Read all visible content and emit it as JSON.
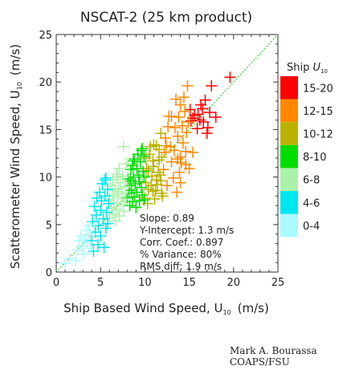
{
  "chart_data": {
    "type": "scatter",
    "title": "NSCAT-2 (25 km product)",
    "xlabel": "Ship Based Wind Speed, U",
    "xlabel_sub": "10",
    "xlabel_unit": "(m/s)",
    "ylabel": "Scatterometer Wind Speed, U",
    "ylabel_sub": "10",
    "ylabel_unit": "(m/s)",
    "xlim": [
      0,
      25
    ],
    "ylim": [
      0,
      25
    ],
    "xticks": [
      "0",
      "5",
      "10",
      "15",
      "20",
      "25"
    ],
    "yticks": [
      "0",
      "5",
      "10",
      "15",
      "20",
      "25"
    ],
    "grid": false,
    "reference_line": "y = x (dotted green)",
    "marker": "plus",
    "legend": {
      "title": "Ship",
      "title_var": "U",
      "title_sub": "10",
      "placement": "right",
      "bins": [
        {
          "label": "15-20",
          "color": "#ff0000"
        },
        {
          "label": "12-15",
          "color": "#ff8800"
        },
        {
          "label": "10-12",
          "color": "#bbb200"
        },
        {
          "label": "8-10",
          "color": "#00dd00"
        },
        {
          "label": "6-8",
          "color": "#aaf2aa"
        },
        {
          "label": "4-6",
          "color": "#00e6f0"
        },
        {
          "label": "0-4",
          "color": "#aafbff"
        }
      ]
    },
    "stats": [
      {
        "label": "Slope:",
        "value": "0.89"
      },
      {
        "label": "Y-Intercept:",
        "value": "1.3 m/s"
      },
      {
        "label": "Corr. Coef.:",
        "value": "0.897"
      },
      {
        "label": "% Variance:",
        "value": "80%"
      },
      {
        "label": "RMS diff:",
        "value": "1.9 m/s"
      }
    ],
    "series": [
      {
        "bin": "15-20",
        "points": [
          [
            19.6,
            20.5
          ],
          [
            17.5,
            19.6
          ],
          [
            16.8,
            18.1
          ],
          [
            16.5,
            17.2
          ],
          [
            17.3,
            16.8
          ],
          [
            16.0,
            16.6
          ],
          [
            15.6,
            16.5
          ],
          [
            15.4,
            16.2
          ],
          [
            16.2,
            16.0
          ],
          [
            15.1,
            17.1
          ],
          [
            16.6,
            15.8
          ],
          [
            17.1,
            15.2
          ],
          [
            15.9,
            15.1
          ],
          [
            15.2,
            15.9
          ],
          [
            17.0,
            14.6
          ],
          [
            18.0,
            16.3
          ],
          [
            16.3,
            17.6
          ]
        ]
      },
      {
        "bin": "12-15",
        "points": [
          [
            14.8,
            19.6
          ],
          [
            14.4,
            18.4
          ],
          [
            14.0,
            17.6
          ],
          [
            13.5,
            18.2
          ],
          [
            13.0,
            16.4
          ],
          [
            14.5,
            16.9
          ],
          [
            14.2,
            15.4
          ],
          [
            12.6,
            15.3
          ],
          [
            13.7,
            14.3
          ],
          [
            12.3,
            14.1
          ],
          [
            12.9,
            13.2
          ],
          [
            14.3,
            13.6
          ],
          [
            14.7,
            14.7
          ],
          [
            12.2,
            12.6
          ],
          [
            13.3,
            12.8
          ],
          [
            14.0,
            12.1
          ],
          [
            14.1,
            11.5
          ],
          [
            13.0,
            11.6
          ],
          [
            13.9,
            10.5
          ],
          [
            12.1,
            10.8
          ],
          [
            14.6,
            11.3
          ],
          [
            13.2,
            9.9
          ],
          [
            12.5,
            9.1
          ],
          [
            14.0,
            9.4
          ],
          [
            13.6,
            8.4
          ],
          [
            13.8,
            16.3
          ],
          [
            14.9,
            15.8
          ],
          [
            12.7,
            16.4
          ],
          [
            13.4,
            15.2
          ],
          [
            12.4,
            13.3
          ],
          [
            14.6,
            12.7
          ],
          [
            13.7,
            11.9
          ],
          [
            15.4,
            12.6
          ],
          [
            15.0,
            10.9
          ]
        ]
      },
      {
        "bin": "10-12",
        "points": [
          [
            11.3,
            13.3
          ],
          [
            11.8,
            14.6
          ],
          [
            11.0,
            13.4
          ],
          [
            11.6,
            12.9
          ],
          [
            10.5,
            12.4
          ],
          [
            10.1,
            12.0
          ],
          [
            11.0,
            11.1
          ],
          [
            10.4,
            10.7
          ],
          [
            10.9,
            11.7
          ],
          [
            11.5,
            10.5
          ],
          [
            10.2,
            10.9
          ],
          [
            11.7,
            10.2
          ],
          [
            10.8,
            10.1
          ],
          [
            11.3,
            9.7
          ],
          [
            10.1,
            9.4
          ],
          [
            10.7,
            9.1
          ],
          [
            11.8,
            9.6
          ],
          [
            11.4,
            9.2
          ],
          [
            10.4,
            8.7
          ],
          [
            10.9,
            8.5
          ],
          [
            11.9,
            8.3
          ],
          [
            11.2,
            8.6
          ],
          [
            10.0,
            7.8
          ],
          [
            12.0,
            8.0
          ],
          [
            11.1,
            7.7
          ],
          [
            10.3,
            7.2
          ],
          [
            11.6,
            11.8
          ],
          [
            10.6,
            13.2
          ],
          [
            11.9,
            12.1
          ]
        ]
      },
      {
        "bin": "8-10",
        "points": [
          [
            9.7,
            13.0
          ],
          [
            9.2,
            12.4
          ],
          [
            9.9,
            12.2
          ],
          [
            8.8,
            11.9
          ],
          [
            9.5,
            11.6
          ],
          [
            8.6,
            11.2
          ],
          [
            9.1,
            10.9
          ],
          [
            9.8,
            10.6
          ],
          [
            8.4,
            10.8
          ],
          [
            9.3,
            10.2
          ],
          [
            8.7,
            10.0
          ],
          [
            9.9,
            10.0
          ],
          [
            8.1,
            9.8
          ],
          [
            9.4,
            9.5
          ],
          [
            8.9,
            9.3
          ],
          [
            8.3,
            9.1
          ],
          [
            9.6,
            8.9
          ],
          [
            8.5,
            8.6
          ],
          [
            9.1,
            8.4
          ],
          [
            8.2,
            8.3
          ],
          [
            9.7,
            8.1
          ],
          [
            8.8,
            7.9
          ],
          [
            8.0,
            7.8
          ],
          [
            9.4,
            7.5
          ],
          [
            8.6,
            7.4
          ],
          [
            9.9,
            7.6
          ],
          [
            8.3,
            7.0
          ],
          [
            9.0,
            6.8
          ],
          [
            8.7,
            11.7
          ],
          [
            9.6,
            12.8
          ],
          [
            8.4,
            9.6
          ]
        ]
      },
      {
        "bin": "6-8",
        "points": [
          [
            7.6,
            13.2
          ],
          [
            7.9,
            11.4
          ],
          [
            7.1,
            10.9
          ],
          [
            6.8,
            10.3
          ],
          [
            7.5,
            10.1
          ],
          [
            6.4,
            9.7
          ],
          [
            7.2,
            9.4
          ],
          [
            6.1,
            9.1
          ],
          [
            7.8,
            9.0
          ],
          [
            6.6,
            8.7
          ],
          [
            7.0,
            8.5
          ],
          [
            7.4,
            8.3
          ],
          [
            6.3,
            8.1
          ],
          [
            6.9,
            7.9
          ],
          [
            7.7,
            7.7
          ],
          [
            6.0,
            7.6
          ],
          [
            6.5,
            7.3
          ],
          [
            7.3,
            7.1
          ],
          [
            6.2,
            6.8
          ],
          [
            6.8,
            6.6
          ],
          [
            7.6,
            6.4
          ],
          [
            6.4,
            6.1
          ],
          [
            7.1,
            5.9
          ],
          [
            6.0,
            5.7
          ],
          [
            6.7,
            5.4
          ],
          [
            7.0,
            8.8
          ],
          [
            6.9,
            10.0
          ]
        ]
      },
      {
        "bin": "4-6",
        "points": [
          [
            5.6,
            9.9
          ],
          [
            5.2,
            9.3
          ],
          [
            5.8,
            8.7
          ],
          [
            4.9,
            8.4
          ],
          [
            5.5,
            8.0
          ],
          [
            4.6,
            7.8
          ],
          [
            5.1,
            7.5
          ],
          [
            5.9,
            7.2
          ],
          [
            4.3,
            6.9
          ],
          [
            5.0,
            6.5
          ],
          [
            5.7,
            6.3
          ],
          [
            4.5,
            6.0
          ],
          [
            5.3,
            5.6
          ],
          [
            4.1,
            5.3
          ],
          [
            4.8,
            4.9
          ],
          [
            5.6,
            4.6
          ],
          [
            4.4,
            4.2
          ],
          [
            5.0,
            3.8
          ],
          [
            4.0,
            3.3
          ],
          [
            4.7,
            2.9
          ],
          [
            5.4,
            2.6
          ],
          [
            4.2,
            2.2
          ],
          [
            5.8,
            5.1
          ],
          [
            5.5,
            9.7
          ]
        ]
      },
      {
        "bin": "0-4",
        "points": [
          [
            3.7,
            4.9
          ],
          [
            3.4,
            4.4
          ],
          [
            3.9,
            4.0
          ],
          [
            2.8,
            3.8
          ],
          [
            3.2,
            3.5
          ],
          [
            2.6,
            3.3
          ],
          [
            3.5,
            3.1
          ],
          [
            2.9,
            2.7
          ],
          [
            2.4,
            2.3
          ],
          [
            3.8,
            2.5
          ],
          [
            3.1,
            1.9
          ],
          [
            1.5,
            1.4
          ],
          [
            1.0,
            0.9
          ],
          [
            2.2,
            1.2
          ]
        ]
      }
    ]
  },
  "credit": {
    "name": "Mark A. Bourassa",
    "org": "COAPS/FSU"
  }
}
